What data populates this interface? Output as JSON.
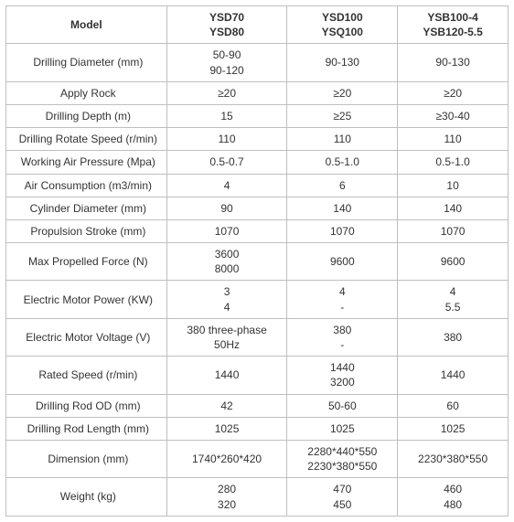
{
  "table": {
    "border_color": "#bfbfbf",
    "text_color": "#333333",
    "font_size_pt": 9,
    "column_widths_pct": [
      32,
      24,
      22,
      22
    ],
    "header": [
      "Model",
      "YSD70\nYSD80",
      "YSD100\nYSQ100",
      "YSB100-4\nYSB120-5.5"
    ],
    "rows": [
      {
        "label": "Drilling Diameter (mm)",
        "v1": "50-90\n90-120",
        "v2": "90-130",
        "v3": "90-130"
      },
      {
        "label": "Apply Rock",
        "v1": "≥20",
        "v2": "≥20",
        "v3": "≥20"
      },
      {
        "label": "Drilling Depth (m)",
        "v1": "15",
        "v2": "≥25",
        "v3": "≥30-40"
      },
      {
        "label": "Drilling Rotate Speed (r/min)",
        "v1": "110",
        "v2": "110",
        "v3": "110"
      },
      {
        "label": "Working Air Pressure (Mpa)",
        "v1": "0.5-0.7",
        "v2": "0.5-1.0",
        "v3": "0.5-1.0"
      },
      {
        "label": "Air Consumption (m3/min)",
        "v1": "4",
        "v2": "6",
        "v3": "10"
      },
      {
        "label": "Cylinder Diameter (mm)",
        "v1": "90",
        "v2": "140",
        "v3": "140"
      },
      {
        "label": "Propulsion Stroke (mm)",
        "v1": "1070",
        "v2": "1070",
        "v3": "1070"
      },
      {
        "label": "Max Propelled Force (N)",
        "v1": "3600\n8000",
        "v2": "9600",
        "v3": "9600"
      },
      {
        "label": "Electric Motor Power (KW)",
        "v1": "3\n4",
        "v2": "4\n-",
        "v3": "4\n5.5"
      },
      {
        "label": "Electric Motor Voltage (V)",
        "v1": "380 three-phase\n50Hz",
        "v2": "380\n-",
        "v3": "380"
      },
      {
        "label": "Rated Speed (r/min)",
        "v1": "1440",
        "v2": "1440\n3200",
        "v3": "1440"
      },
      {
        "label": "Drilling Rod OD (mm)",
        "v1": "42",
        "v2": "50-60",
        "v3": "60"
      },
      {
        "label": "Drilling Rod Length (mm)",
        "v1": "1025",
        "v2": "1025",
        "v3": "1025"
      },
      {
        "label": "Dimension (mm)",
        "v1": "1740*260*420",
        "v2": "2280*440*550\n2230*380*550",
        "v3": "2230*380*550"
      },
      {
        "label": "Weight (kg)",
        "v1": "280\n320",
        "v2": "470\n450",
        "v3": "460\n480"
      }
    ]
  }
}
